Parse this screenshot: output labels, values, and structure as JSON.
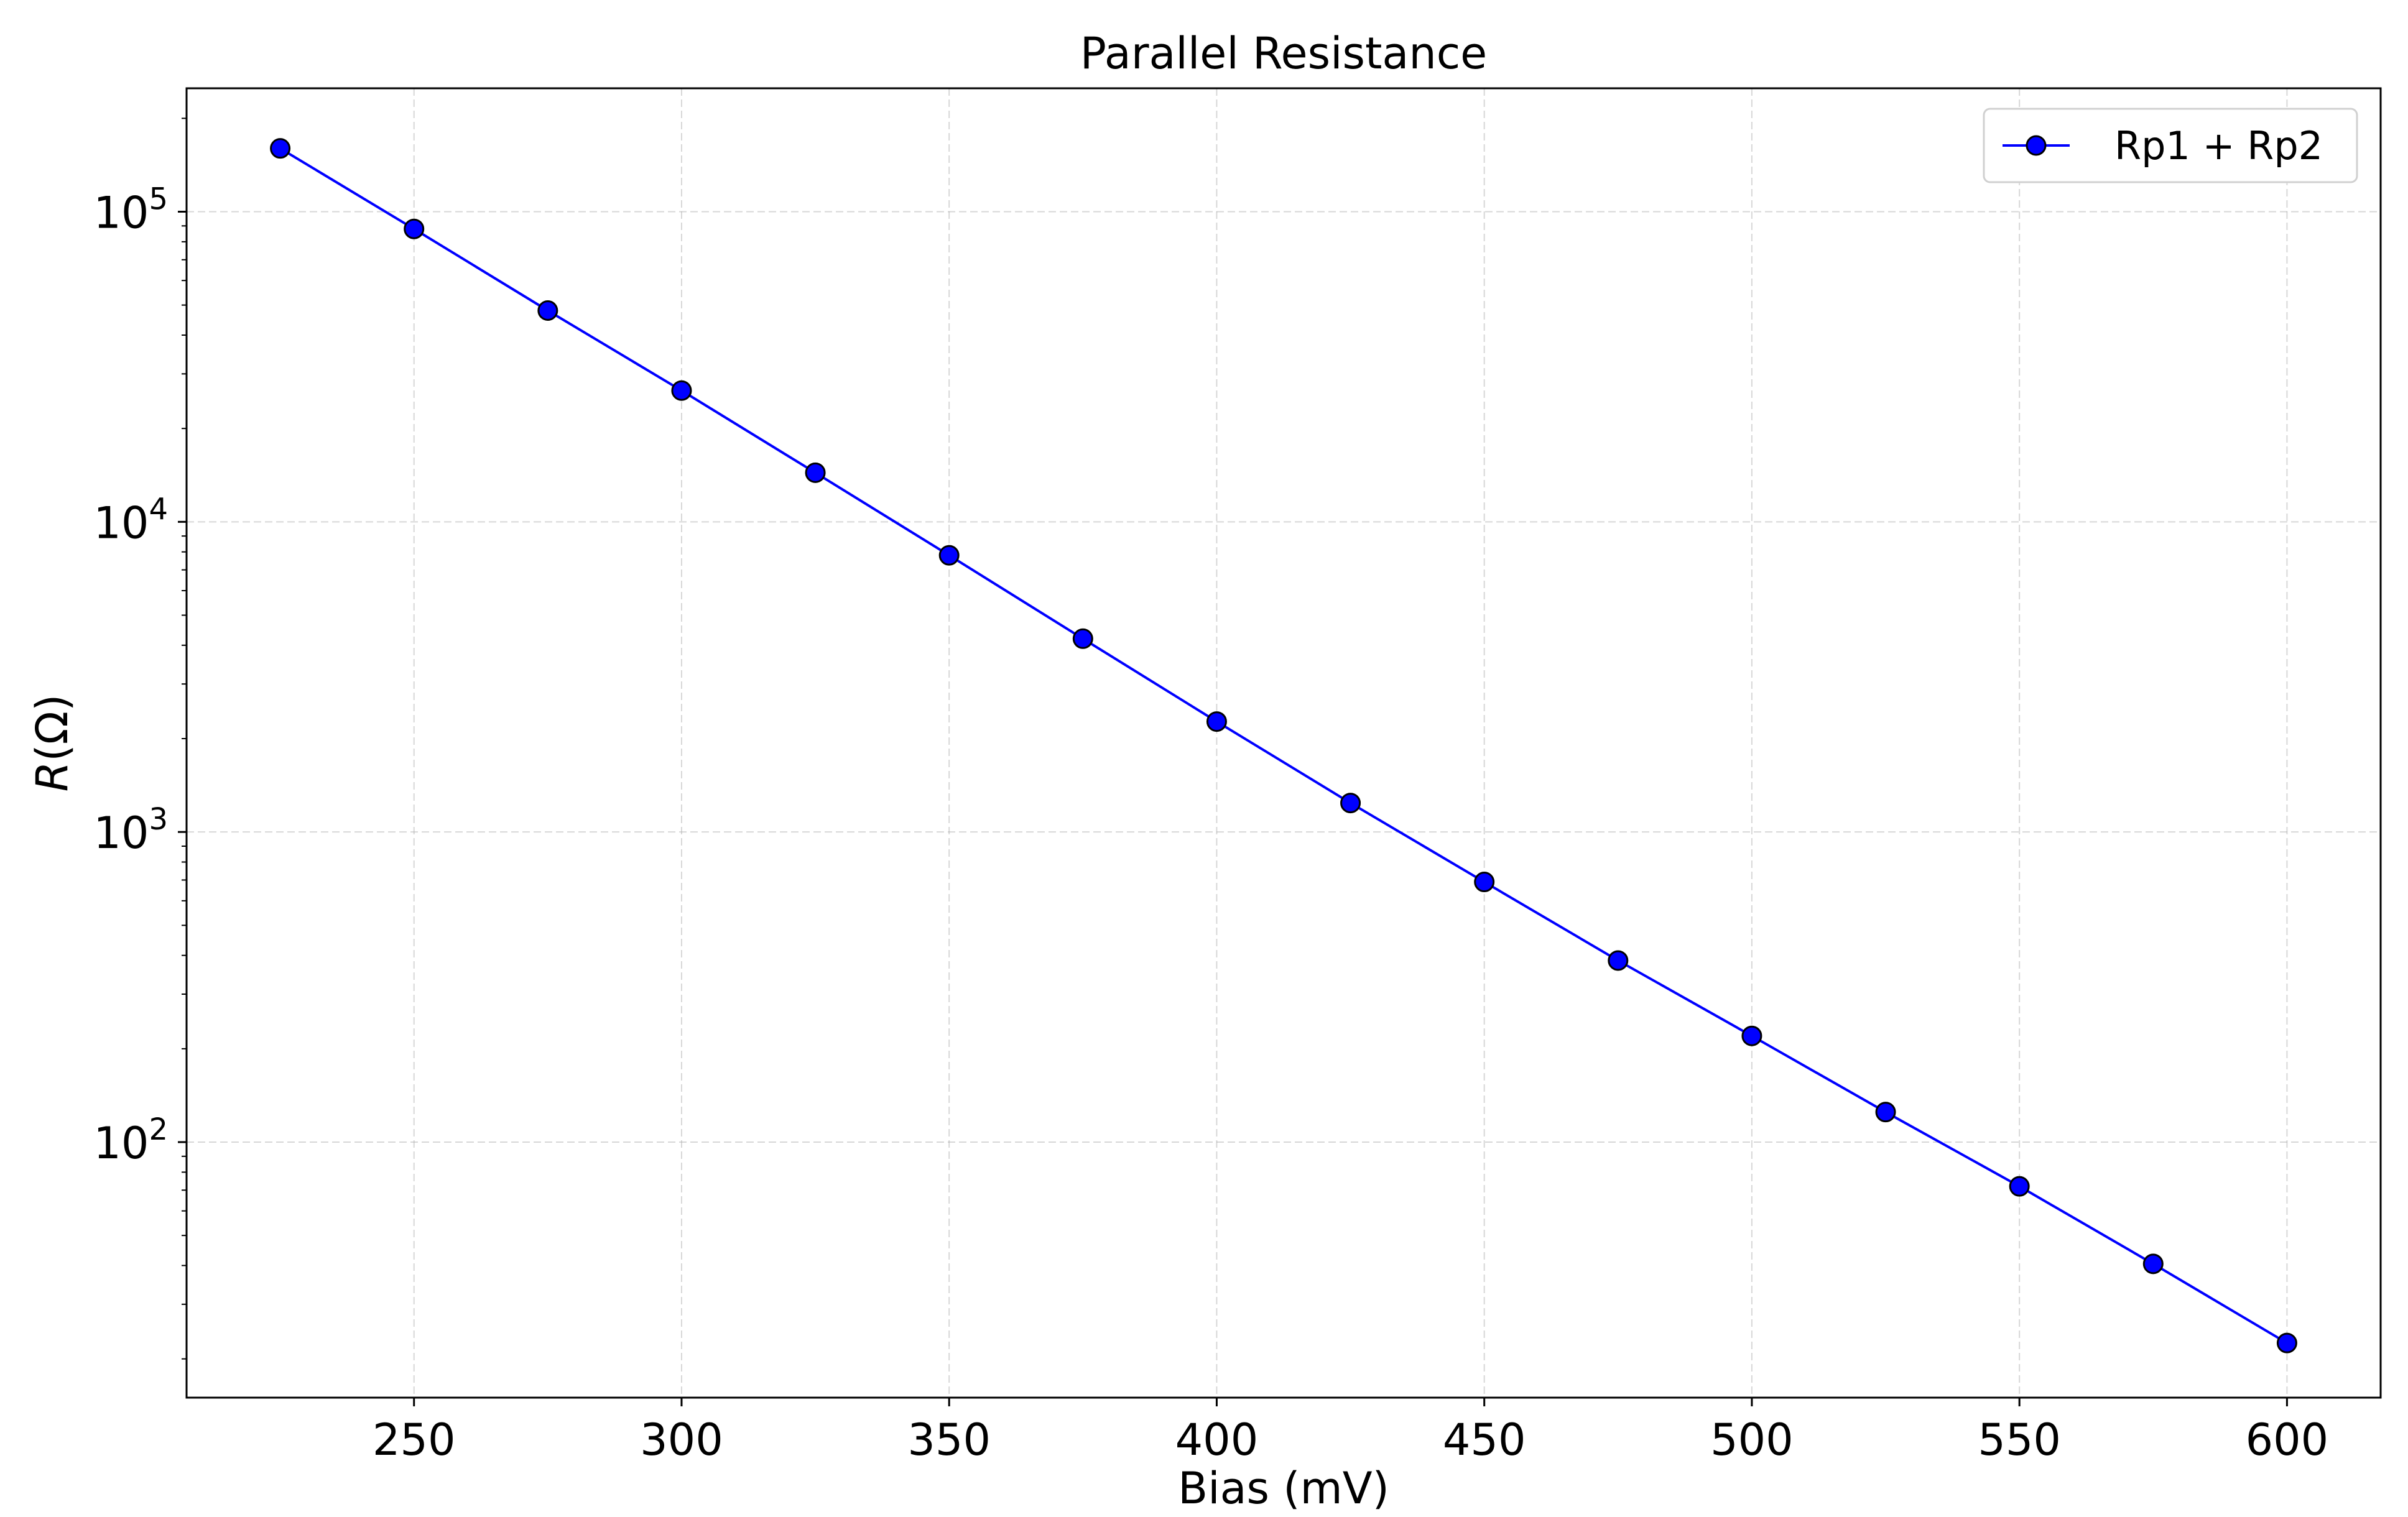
{
  "chart_data": {
    "type": "line",
    "title": "Parallel Resistance",
    "xlabel": "Bias (mV)",
    "ylabel_italic": "R",
    "ylabel_rest": "(Ω)",
    "yscale": "log",
    "xlim": [
      207.5,
      617.5
    ],
    "ylim": [
      15,
      250000
    ],
    "xticks": [
      250,
      300,
      350,
      400,
      450,
      500,
      550,
      600
    ],
    "yticks": [
      {
        "value": 100,
        "base": "10",
        "exp": "2"
      },
      {
        "value": 1000,
        "base": "10",
        "exp": "3"
      },
      {
        "value": 10000,
        "base": "10",
        "exp": "4"
      },
      {
        "value": 100000,
        "base": "10",
        "exp": "5"
      }
    ],
    "grid": true,
    "legend_position": "top-right",
    "series": [
      {
        "name": "Rp1 + Rp2",
        "color": "#0000ff",
        "marker_edge_color": "#000000",
        "x": [
          225,
          250,
          275,
          300,
          325,
          350,
          375,
          400,
          425,
          450,
          475,
          500,
          525,
          550,
          575,
          600
        ],
        "y": [
          160000,
          88000,
          48000,
          26500,
          14400,
          7800,
          4200,
          2270,
          1240,
          690,
          385,
          220,
          125,
          72,
          40.5,
          22.5
        ]
      }
    ]
  }
}
